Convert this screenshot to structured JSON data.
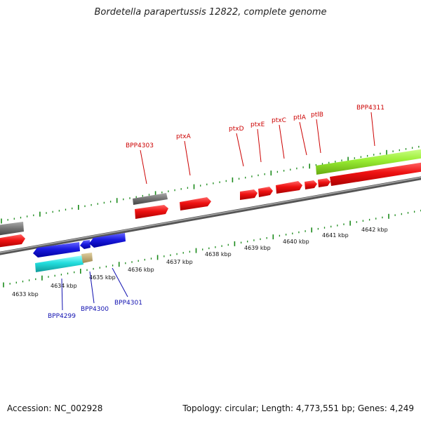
{
  "title": "Bordetella parapertussis 12822, complete genome",
  "footer": {
    "accession": "Accession: NC_002928",
    "summary": "Topology: circular; Length: 4,773,551 bp; Genes: 4,249"
  },
  "colors": {
    "forward": "#ee1111",
    "reverse": "#1a1ae0",
    "grey": "#777777",
    "cyan": "#22dddd",
    "lime": "#99ee33",
    "tan": "#c8b070",
    "tick": "#1a8a1a",
    "top_label": "#cc0000",
    "bottom_label": "#1010b0"
  },
  "axis": {
    "kbp_labels": [
      "4633 kbp",
      "4634 kbp",
      "4635 kbp",
      "4636 kbp",
      "4637 kbp",
      "4638 kbp",
      "4639 kbp",
      "4640 kbp",
      "4641 kbp",
      "4642 kbp"
    ]
  },
  "genes_top": [
    {
      "name": "BPP4303",
      "color": "forward"
    },
    {
      "name": "ptxA",
      "color": "forward"
    },
    {
      "name": "ptxD",
      "color": "forward"
    },
    {
      "name": "ptxE",
      "color": "forward"
    },
    {
      "name": "ptxC",
      "color": "forward"
    },
    {
      "name": "ptlA",
      "color": "forward"
    },
    {
      "name": "ptlB",
      "color": "forward"
    },
    {
      "name": "BPP4311",
      "color": "forward"
    }
  ],
  "genes_bottom": [
    {
      "name": "BPP4299",
      "color": "bottom_label"
    },
    {
      "name": "BPP4300",
      "color": "bottom_label"
    },
    {
      "name": "BPP4301",
      "color": "bottom_label"
    }
  ]
}
